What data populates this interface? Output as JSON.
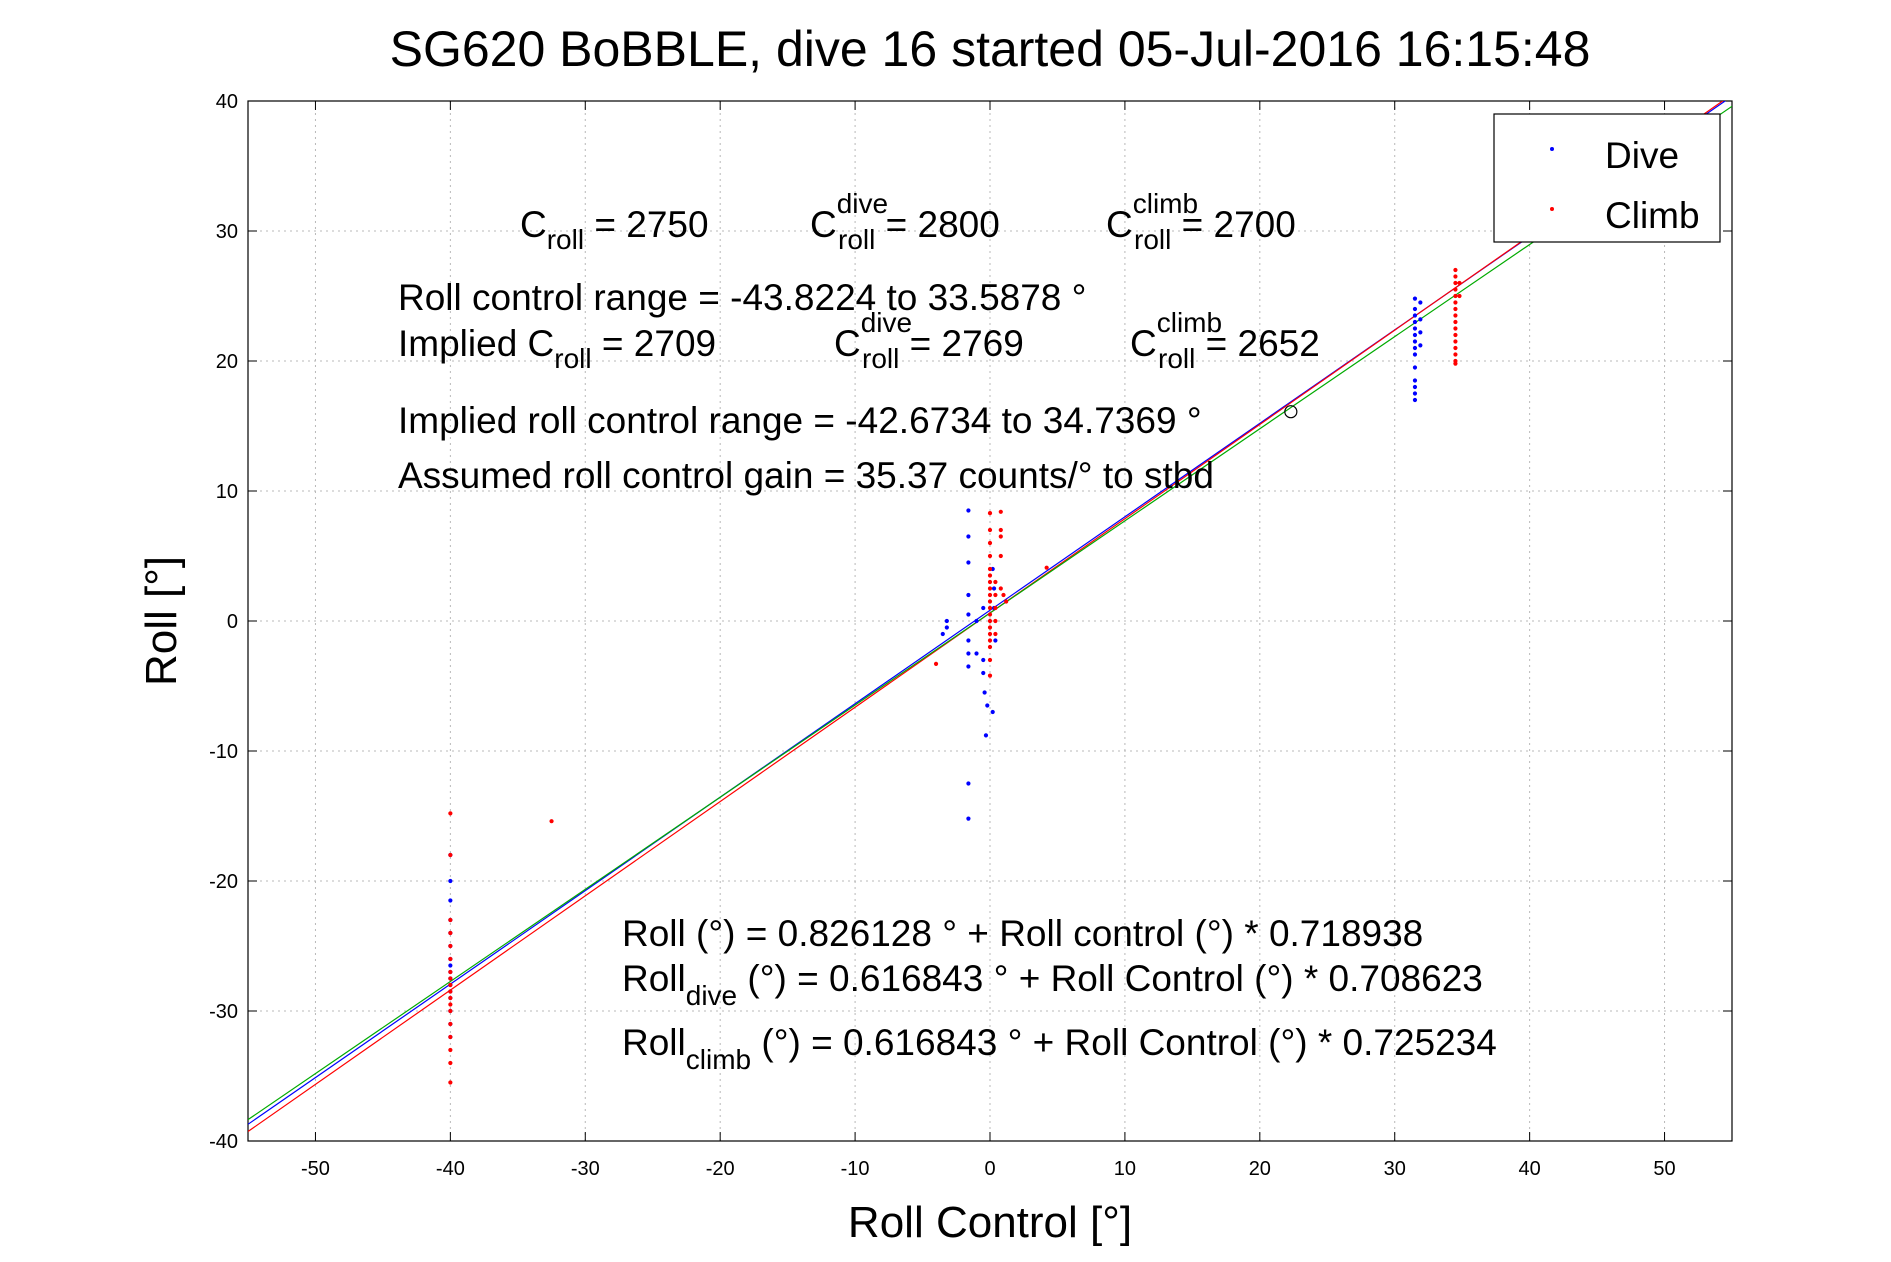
{
  "chart_data": {
    "type": "scatter",
    "title": "SG620 BoBBLE, dive 16 started 05-Jul-2016 16:15:48",
    "xlabel": "Roll Control [°]",
    "ylabel": "Roll [°]",
    "xlim": [
      -55,
      55
    ],
    "ylim": [
      -40,
      40
    ],
    "xticks": [
      -50,
      -40,
      -30,
      -20,
      -10,
      0,
      10,
      20,
      30,
      40,
      50
    ],
    "yticks": [
      -40,
      -30,
      -20,
      -10,
      0,
      10,
      20,
      30,
      40
    ],
    "grid": true,
    "legend_position": "top-right",
    "series": [
      {
        "name": "Dive",
        "color": "#0000ff",
        "points": [
          [
            -40,
            -18
          ],
          [
            -40,
            -20
          ],
          [
            -40,
            -21.5
          ],
          [
            -40,
            -23
          ],
          [
            -40,
            -24
          ],
          [
            -40,
            -25
          ],
          [
            -40,
            -26
          ],
          [
            -40,
            -26.5
          ],
          [
            -40,
            -27
          ],
          [
            -40,
            -27.5
          ],
          [
            -40,
            -28
          ],
          [
            -40,
            -28.5
          ],
          [
            -40,
            -29
          ],
          [
            -40,
            -30
          ],
          [
            -40,
            -31
          ],
          [
            -40,
            -32
          ],
          [
            -3.2,
            0
          ],
          [
            -3.2,
            -0.5
          ],
          [
            -3.5,
            -1
          ],
          [
            -1.6,
            8.5
          ],
          [
            -1.6,
            6.5
          ],
          [
            -1.6,
            4.5
          ],
          [
            -1.6,
            2
          ],
          [
            -1.6,
            0.5
          ],
          [
            -1.6,
            -1.5
          ],
          [
            -1.6,
            -2.5
          ],
          [
            -1.6,
            -3.5
          ],
          [
            -1.6,
            -12.5
          ],
          [
            -1.6,
            -15.2
          ],
          [
            -1.0,
            0
          ],
          [
            -1.0,
            -2.5
          ],
          [
            -0.5,
            1
          ],
          [
            -0.5,
            -3
          ],
          [
            -0.5,
            -4
          ],
          [
            -0.4,
            -5.5
          ],
          [
            -0.2,
            -6.5
          ],
          [
            -0.3,
            -8.8
          ],
          [
            0.2,
            -7
          ],
          [
            0.2,
            4
          ],
          [
            0.3,
            2.5
          ],
          [
            0.3,
            1
          ],
          [
            0.4,
            -1.5
          ],
          [
            31.5,
            24.8
          ],
          [
            31.5,
            24
          ],
          [
            31.5,
            23.5
          ],
          [
            31.5,
            23
          ],
          [
            31.5,
            22.5
          ],
          [
            31.5,
            22
          ],
          [
            31.5,
            21.5
          ],
          [
            31.5,
            21
          ],
          [
            31.5,
            20.5
          ],
          [
            31.5,
            19.5
          ],
          [
            31.5,
            18.5
          ],
          [
            31.5,
            18
          ],
          [
            31.5,
            17.5
          ],
          [
            31.5,
            17
          ],
          [
            31.9,
            24.5
          ],
          [
            31.9,
            23.2
          ],
          [
            31.9,
            22.2
          ],
          [
            31.9,
            21.2
          ]
        ]
      },
      {
        "name": "Climb",
        "color": "#ff0000",
        "points": [
          [
            -40,
            -14.8
          ],
          [
            -40,
            -18
          ],
          [
            -40,
            -23
          ],
          [
            -40,
            -24
          ],
          [
            -40,
            -25
          ],
          [
            -40,
            -26
          ],
          [
            -40,
            -27
          ],
          [
            -40,
            -27.5
          ],
          [
            -40,
            -28
          ],
          [
            -40,
            -28.5
          ],
          [
            -40,
            -29
          ],
          [
            -40,
            -29.5
          ],
          [
            -40,
            -30
          ],
          [
            -40,
            -31
          ],
          [
            -40,
            -32
          ],
          [
            -40,
            -33
          ],
          [
            -40,
            -34
          ],
          [
            -40,
            -35.5
          ],
          [
            -32.5,
            -15.4
          ],
          [
            -4,
            -3.3
          ],
          [
            4.2,
            4.1
          ],
          [
            0,
            8.3
          ],
          [
            0,
            7
          ],
          [
            0,
            6
          ],
          [
            0,
            5
          ],
          [
            0,
            4
          ],
          [
            0,
            3.5
          ],
          [
            0,
            3
          ],
          [
            0,
            2.5
          ],
          [
            0,
            2
          ],
          [
            0,
            1.5
          ],
          [
            0,
            1
          ],
          [
            0,
            0.5
          ],
          [
            0,
            0
          ],
          [
            0,
            -0.5
          ],
          [
            0,
            -1
          ],
          [
            0,
            -1.5
          ],
          [
            0,
            -2
          ],
          [
            0,
            -3
          ],
          [
            0,
            -4.2
          ],
          [
            0.4,
            3
          ],
          [
            0.4,
            2
          ],
          [
            0.4,
            1
          ],
          [
            0.4,
            0
          ],
          [
            0.4,
            -1
          ],
          [
            0.8,
            8.4
          ],
          [
            0.8,
            7
          ],
          [
            0.8,
            6.5
          ],
          [
            0.8,
            5
          ],
          [
            0.8,
            2.5
          ],
          [
            1,
            2
          ],
          [
            1.2,
            1.5
          ],
          [
            34.5,
            27
          ],
          [
            34.5,
            26.5
          ],
          [
            34.5,
            26
          ],
          [
            34.5,
            25.5
          ],
          [
            34.5,
            25
          ],
          [
            34.5,
            24.5
          ],
          [
            34.5,
            24
          ],
          [
            34.5,
            23.5
          ],
          [
            34.5,
            23
          ],
          [
            34.5,
            22.5
          ],
          [
            34.5,
            22
          ],
          [
            34.5,
            21.5
          ],
          [
            34.5,
            21
          ],
          [
            34.5,
            20.5
          ],
          [
            34.5,
            20
          ],
          [
            34.5,
            19.8
          ],
          [
            34.8,
            26
          ],
          [
            34.8,
            25
          ]
        ]
      }
    ],
    "fit_lines": [
      {
        "color": "#0000ff",
        "intercept": 0.826128,
        "slope": 0.718938
      },
      {
        "color": "#ff0000",
        "intercept": 0.616843,
        "slope": 0.725234
      },
      {
        "color": "#00aa00",
        "intercept": 0.616843,
        "slope": 0.708623
      }
    ],
    "marker_circle": {
      "x": 22.3,
      "y": 16.1
    }
  },
  "annotations": {
    "c_roll": {
      "base": "C",
      "sub": "roll",
      "value": " = 2750"
    },
    "c_roll_dive": {
      "base": "C",
      "sup": "dive",
      "sub": "roll",
      "value": " = 2800"
    },
    "c_roll_climb": {
      "base": "C",
      "sup": "climb",
      "sub": "roll",
      "value": " = 2700"
    },
    "roll_range": "Roll control range = -43.8224 to 33.5878 °",
    "implied_prefix": "Implied C",
    "implied_sub": "roll",
    "implied_value": " = 2709",
    "implied_dive": {
      "base": "C",
      "sup": "dive",
      "sub": "roll",
      "value": " = 2769"
    },
    "implied_climb": {
      "base": "C",
      "sup": "climb",
      "sub": "roll",
      "value": " = 2652"
    },
    "implied_range": "Implied roll control range = -42.6734 to 34.7369 °",
    "gain": "Assumed roll control gain = 35.37 counts/° to stbd",
    "eq_all": "Roll (°) = 0.826128 ° + Roll control (°) * 0.718938",
    "eq_dive_base": "Roll",
    "eq_dive_sub": "dive",
    "eq_dive_rest": " (°) = 0.616843 ° + Roll Control (°) * 0.708623",
    "eq_climb_base": "Roll",
    "eq_climb_sub": "climb",
    "eq_climb_rest": " (°) = 0.616843 ° + Roll Control (°) * 0.725234"
  }
}
